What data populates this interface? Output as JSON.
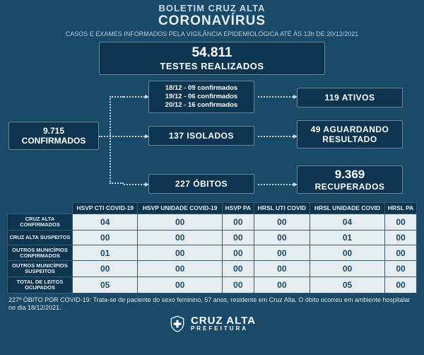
{
  "header": {
    "line1": "BOLETIM CRUZ ALTA",
    "line2": "CORONAVÍRUS",
    "line3": "CASOS E EXAMES INFORMADOS PELA VIGILÂNCIA EPIDEMIOLÓGICA ATÉ ÀS 13h DE 20/12/2021"
  },
  "tests": {
    "value": "54.811",
    "label": "TESTES REALIZADOS"
  },
  "confirmed": {
    "text": "9.715 CONFIRMADOS"
  },
  "dates": {
    "l1": "18/12 - 09 confirmados",
    "l2": "19/12 - 06 confirmados",
    "l3": "20/12 - 16 confirmados"
  },
  "isolated": {
    "text": "137 ISOLADOS"
  },
  "deaths": {
    "text": "227 ÓBITOS"
  },
  "active": {
    "text": "119 ATIVOS"
  },
  "awaiting": {
    "l1": "49 AGUARDANDO",
    "l2": "RESULTADO"
  },
  "recovered": {
    "l1": "9.369",
    "l2": "RECUPERADOS"
  },
  "table": {
    "columns": [
      "HSVP CTI COVID-19",
      "HSVP UNIDADE COVID-19",
      "HSVP PA",
      "HRSL UTI COVID",
      "HRSL UNIDADE COVID",
      "HRSL PA"
    ],
    "rows": [
      {
        "label": "CRUZ ALTA CONFIRMADOS",
        "cells": [
          "04",
          "00",
          "00",
          "00",
          "04",
          "00"
        ]
      },
      {
        "label": "CRUZ ALTA SUSPEITOS",
        "cells": [
          "00",
          "00",
          "00",
          "00",
          "01",
          "00"
        ]
      },
      {
        "label": "OUTROS MUNICÍPIOS CONFIRMADOS",
        "cells": [
          "01",
          "00",
          "00",
          "00",
          "00",
          "00"
        ]
      },
      {
        "label": "OUTROS MUNICÍPIOS SUSPEITOS",
        "cells": [
          "00",
          "00",
          "00",
          "00",
          "00",
          "00"
        ]
      },
      {
        "label": "TOTAL DE LEITOS OCUPADOS",
        "cells": [
          "05",
          "00",
          "00",
          "00",
          "05",
          "00"
        ]
      }
    ]
  },
  "footnote": "227º ÓBITO POR COVID-19: Trata-se de paciente do sexo feminino, 57 anos, residente em Cruz Alta. O óbito ocorreu em ambiente hospitalar no dia 18/12/2021.",
  "footer": {
    "city": "CRUZ ALTA",
    "tag": "PREFEITURA"
  },
  "colors": {
    "bg": "#1a4a6a",
    "box_bg": "#0d3550",
    "box_border": "#6a8698",
    "cell_bg": "#e6edf1",
    "dotted": "#cdd9e2"
  }
}
